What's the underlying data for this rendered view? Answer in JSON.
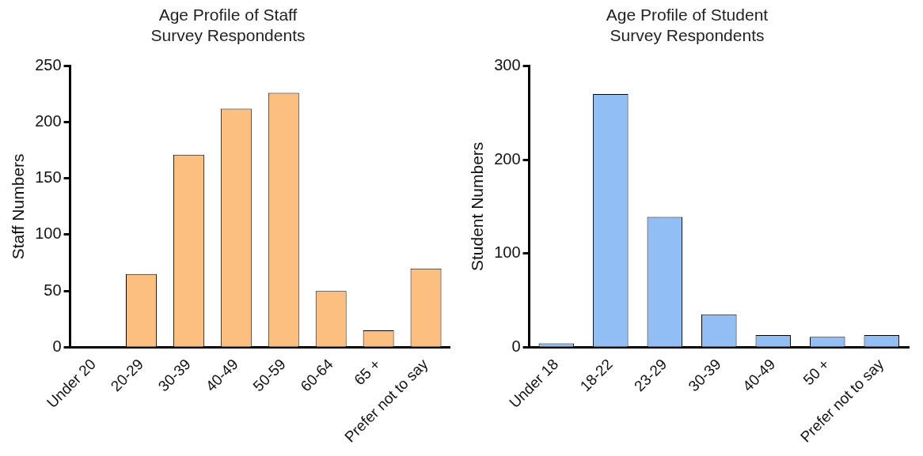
{
  "chart_data": [
    {
      "type": "bar",
      "title": "Age Profile of Staff\nSurvey Respondents",
      "ylabel": "Staff Numbers",
      "categories": [
        "Under 20",
        "20-29",
        "30-39",
        "40-49",
        "50-59",
        "60-64",
        "65 +",
        "Prefer not to say"
      ],
      "values": [
        0,
        65,
        171,
        212,
        226,
        50,
        15,
        70
      ],
      "color": "#fdbf80",
      "ylim": [
        0,
        250
      ],
      "yticks": [
        0,
        50,
        100,
        150,
        200,
        250
      ],
      "grid": false
    },
    {
      "type": "bar",
      "title": "Age Profile of Student\nSurvey Respondents",
      "ylabel": "Student Numbers",
      "categories": [
        "Under 18",
        "18-22",
        "23-29",
        "30-39",
        "40-49",
        "50 +",
        "Prefer not to say"
      ],
      "values": [
        4,
        270,
        139,
        35,
        13,
        11,
        13
      ],
      "color": "#91bff5",
      "ylim": [
        0,
        300
      ],
      "yticks": [
        0,
        100,
        200,
        300
      ],
      "grid": false
    }
  ]
}
